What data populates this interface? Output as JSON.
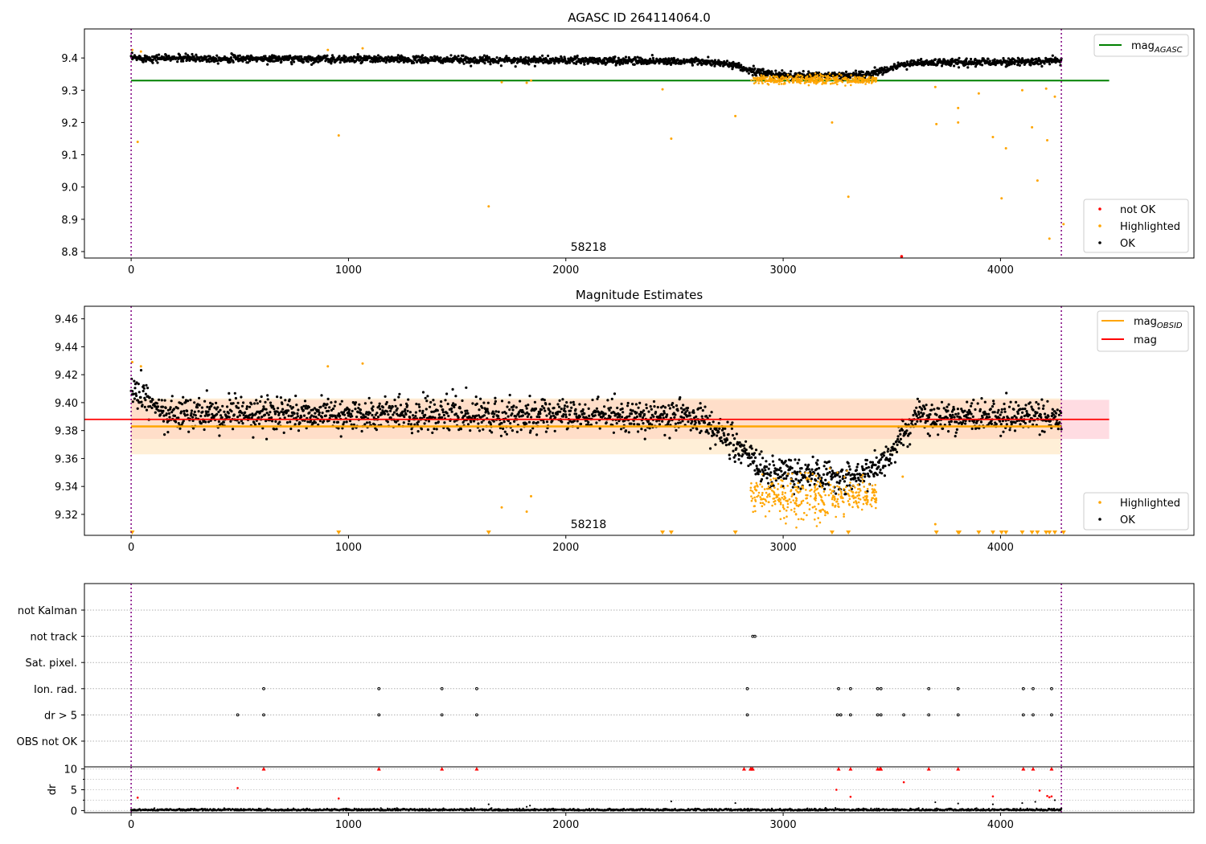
{
  "chart_data": [
    {
      "type": "scatter",
      "title": "AGASC ID 264114064.0",
      "annotation": "58218",
      "xlim": [
        -215,
        4890
      ],
      "ylim": [
        8.78,
        9.49
      ],
      "xticks": [
        "0",
        "1000",
        "2000",
        "3000",
        "4000"
      ],
      "yticks": [
        "9.4",
        "9.3",
        "9.2",
        "9.1",
        "9.0",
        "8.9",
        "8.8"
      ],
      "vlines": [
        0,
        4280
      ],
      "hline": {
        "name": "mag",
        "subscript": "AGASC",
        "y": 9.33,
        "color": "#008000"
      },
      "legend_lines": [
        {
          "name": "mag",
          "subscript": "AGASC",
          "color": "#008000"
        }
      ],
      "legend_points": [
        {
          "name": "not OK",
          "color": "#ff0000"
        },
        {
          "name": "Highlighted",
          "color": "#ffa500"
        },
        {
          "name": "OK",
          "color": "#000000"
        }
      ],
      "series": [
        {
          "name": "OK",
          "color": "#000000",
          "description": "about 4300 samples, one per frame; trend points below",
          "trend": [
            [
              0,
              9.4
            ],
            [
              2600,
              9.39
            ],
            [
              2750,
              9.38
            ],
            [
              2850,
              9.36
            ],
            [
              2950,
              9.35
            ],
            [
              3050,
              9.345
            ],
            [
              3250,
              9.345
            ],
            [
              3400,
              9.35
            ],
            [
              3500,
              9.37
            ],
            [
              3600,
              9.385
            ],
            [
              4280,
              9.39
            ]
          ],
          "scatter": 0.008
        },
        {
          "name": "Highlighted",
          "color": "#ffa500",
          "band": {
            "x0": 2850,
            "x1": 3430,
            "y": 9.333,
            "scatter": 0.008
          },
          "points": [
            [
              5,
              9.425
            ],
            [
              30,
              9.14
            ],
            [
              45,
              9.42
            ],
            [
              905,
              9.425
            ],
            [
              955,
              9.16
            ],
            [
              1065,
              9.43
            ],
            [
              1645,
              8.94
            ],
            [
              1705,
              9.325
            ],
            [
              1820,
              9.323
            ],
            [
              1840,
              9.33
            ],
            [
              2445,
              9.303
            ],
            [
              2485,
              9.15
            ],
            [
              2780,
              9.22
            ],
            [
              3225,
              9.2
            ],
            [
              3300,
              8.97
            ],
            [
              3700,
              9.31
            ],
            [
              3705,
              9.195
            ],
            [
              3805,
              9.245
            ],
            [
              3805,
              9.2
            ],
            [
              3900,
              9.29
            ],
            [
              3965,
              9.155
            ],
            [
              4005,
              8.965
            ],
            [
              4025,
              9.12
            ],
            [
              4100,
              9.3
            ],
            [
              4145,
              9.185
            ],
            [
              4170,
              9.02
            ],
            [
              4210,
              9.305
            ],
            [
              4215,
              9.145
            ],
            [
              4225,
              8.84
            ],
            [
              4250,
              9.28
            ],
            [
              4290,
              8.885
            ]
          ]
        },
        {
          "name": "not OK",
          "color": "#ff0000",
          "points": [
            [
              3545,
              8.785
            ]
          ]
        }
      ]
    },
    {
      "type": "scatter",
      "title": "Magnitude Estimates",
      "annotation": "58218",
      "xlim": [
        -215,
        4890
      ],
      "ylim": [
        9.305,
        9.469
      ],
      "xticks": [
        "0",
        "1000",
        "2000",
        "3000",
        "4000"
      ],
      "yticks": [
        "9.46",
        "9.44",
        "9.42",
        "9.40",
        "9.38",
        "9.36",
        "9.34",
        "9.32"
      ],
      "vlines": [
        0,
        4280
      ],
      "mag": {
        "name": "mag",
        "y": 9.388,
        "band": [
          9.374,
          9.402
        ],
        "x_end": 4500,
        "color": "#ff0000",
        "band_color": "#ffc0cb"
      },
      "mag_obsid": {
        "name": "mag",
        "subscript": "OBSID",
        "y": 9.383,
        "band": [
          9.363,
          9.403
        ],
        "x_end": 4280,
        "color": "#ffa500",
        "band_color": "#ffdfb0"
      },
      "legend_lines": [
        {
          "name": "mag",
          "subscript": "OBSID",
          "color": "#ffa500"
        },
        {
          "name": "mag",
          "subscript": "",
          "color": "#ff0000"
        }
      ],
      "legend_points": [
        {
          "name": "Highlighted",
          "color": "#ffa500"
        },
        {
          "name": "OK",
          "color": "#000000"
        }
      ],
      "series": [
        {
          "name": "OK",
          "color": "#000000",
          "trend": [
            [
              0,
              9.41
            ],
            [
              150,
              9.392
            ],
            [
              2600,
              9.39
            ],
            [
              2700,
              9.38
            ],
            [
              2800,
              9.368
            ],
            [
              2870,
              9.355
            ],
            [
              2950,
              9.35
            ],
            [
              3250,
              9.348
            ],
            [
              3400,
              9.35
            ],
            [
              3480,
              9.36
            ],
            [
              3560,
              9.38
            ],
            [
              3620,
              9.39
            ],
            [
              4280,
              9.39
            ]
          ],
          "scatter": 0.008
        },
        {
          "name": "Highlighted",
          "color": "#ffa500",
          "band": {
            "x0": 2850,
            "x1": 3430,
            "y": 9.333,
            "scatter": 0.008
          },
          "points": [
            [
              5,
              9.429
            ],
            [
              45,
              9.426
            ],
            [
              905,
              9.426
            ],
            [
              1065,
              9.428
            ],
            [
              1705,
              9.325
            ],
            [
              1820,
              9.322
            ],
            [
              1840,
              9.333
            ],
            [
              3550,
              9.347
            ],
            [
              3700,
              9.313
            ]
          ],
          "offscale_below_x": [
            5,
            955,
            1645,
            2445,
            2485,
            2780,
            3225,
            3300,
            3705,
            3805,
            3810,
            3900,
            3965,
            4005,
            4025,
            4100,
            4145,
            4170,
            4210,
            4225,
            4250,
            4290
          ]
        }
      ]
    },
    {
      "type": "scatter",
      "xlim": [
        -215,
        4890
      ],
      "vlines": [
        0,
        4280
      ],
      "flags": {
        "categories": [
          "not Kalman",
          "not track",
          "Sat. pixel.",
          "Ion. rad.",
          "dr > 5",
          "OBS not OK"
        ],
        "points": {
          "not track": [
            2860,
            2870
          ],
          "Ion. rad.": [
            610,
            1140,
            1430,
            1590,
            2835,
            3255,
            3310,
            3435,
            3450,
            3670,
            3805,
            4105,
            4150,
            4235
          ],
          "dr > 5": [
            490,
            610,
            1140,
            1430,
            1590,
            2835,
            3250,
            3265,
            3310,
            3435,
            3450,
            3555,
            3670,
            3805,
            4105,
            4150,
            4235
          ]
        }
      },
      "dr": {
        "ylabel": "dr",
        "ylim": [
          -0.5,
          10.5
        ],
        "yticks": [
          "10",
          "5",
          "0"
        ],
        "baseline": {
          "y": 0.15,
          "scatter": 0.15,
          "color": "#000000"
        },
        "black_points": [
          [
            1645,
            1.5
          ],
          [
            1820,
            0.9
          ],
          [
            1835,
            1.2
          ],
          [
            2485,
            2.2
          ],
          [
            2780,
            1.8
          ],
          [
            3700,
            2.0
          ],
          [
            3805,
            1.7
          ],
          [
            3965,
            1.5
          ],
          [
            4100,
            1.8
          ],
          [
            4160,
            2.1
          ],
          [
            4250,
            2.5
          ]
        ],
        "red_points": [
          [
            30,
            3.1
          ],
          [
            490,
            5.4
          ],
          [
            955,
            2.9
          ],
          [
            3245,
            5.0
          ],
          [
            3310,
            3.3
          ],
          [
            3555,
            6.8
          ],
          [
            3965,
            3.4
          ],
          [
            4180,
            4.8
          ],
          [
            4215,
            3.5
          ],
          [
            4225,
            3.2
          ],
          [
            4235,
            3.4
          ]
        ],
        "red_capped_x": [
          610,
          1140,
          1430,
          1590,
          2820,
          2850,
          2855,
          2860,
          3255,
          3310,
          3435,
          3445,
          3450,
          3670,
          3805,
          4105,
          4150,
          4235
        ]
      }
    }
  ]
}
